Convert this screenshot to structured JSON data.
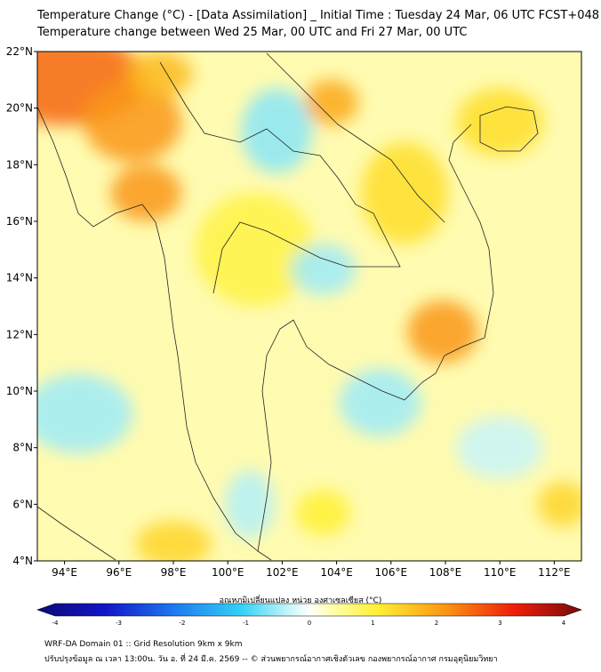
{
  "title_line1": "Temperature Change (°C) - [Data Assimilation] _ Initial Time : Tuesday 24 Mar, 06 UTC FCST+048",
  "title_line2": "Temperature change between Wed 25 Mar, 00 UTC and Fri 27 Mar, 00 UTC",
  "map": {
    "lon_range": [
      93,
      113
    ],
    "lat_range": [
      4,
      22
    ],
    "lon_ticks": [
      "94°E",
      "96°E",
      "98°E",
      "100°E",
      "102°E",
      "104°E",
      "106°E",
      "108°E",
      "110°E",
      "112°E"
    ],
    "lat_ticks": [
      "4°N",
      "6°N",
      "8°N",
      "10°N",
      "12°N",
      "14°N",
      "16°N",
      "18°N",
      "20°N",
      "22°N"
    ],
    "blobs": [
      {
        "lon": 94.0,
        "lat": 21.0,
        "rx": 3.0,
        "ry": 1.6,
        "value": 2.4
      },
      {
        "lon": 96.5,
        "lat": 19.5,
        "rx": 1.8,
        "ry": 1.4,
        "value": 2.0
      },
      {
        "lon": 97.0,
        "lat": 17.0,
        "rx": 1.3,
        "ry": 1.0,
        "value": 2.0
      },
      {
        "lon": 97.5,
        "lat": 21.2,
        "rx": 1.2,
        "ry": 0.8,
        "value": 1.6
      },
      {
        "lon": 103.8,
        "lat": 20.2,
        "rx": 1.0,
        "ry": 0.8,
        "value": 1.8
      },
      {
        "lon": 107.9,
        "lat": 12.1,
        "rx": 1.3,
        "ry": 1.1,
        "value": 2.0
      },
      {
        "lon": 106.5,
        "lat": 17.0,
        "rx": 1.6,
        "ry": 1.8,
        "value": 1.2
      },
      {
        "lon": 110.0,
        "lat": 19.5,
        "rx": 1.6,
        "ry": 1.2,
        "value": 1.2
      },
      {
        "lon": 101.0,
        "lat": 15.0,
        "rx": 2.2,
        "ry": 2.0,
        "value": 0.9
      },
      {
        "lon": 101.8,
        "lat": 19.2,
        "rx": 1.3,
        "ry": 1.5,
        "value": -0.6
      },
      {
        "lon": 103.5,
        "lat": 14.3,
        "rx": 1.2,
        "ry": 0.9,
        "value": -0.5
      },
      {
        "lon": 105.6,
        "lat": 9.6,
        "rx": 1.5,
        "ry": 1.2,
        "value": -0.5
      },
      {
        "lon": 94.5,
        "lat": 9.2,
        "rx": 2.0,
        "ry": 1.4,
        "value": -0.5
      },
      {
        "lon": 100.8,
        "lat": 6.0,
        "rx": 0.9,
        "ry": 1.2,
        "value": -0.4
      },
      {
        "lon": 110.0,
        "lat": 8.0,
        "rx": 1.6,
        "ry": 1.1,
        "value": -0.3
      },
      {
        "lon": 98.0,
        "lat": 4.6,
        "rx": 1.4,
        "ry": 0.8,
        "value": 1.3
      },
      {
        "lon": 103.5,
        "lat": 5.7,
        "rx": 1.0,
        "ry": 0.8,
        "value": 1.0
      },
      {
        "lon": 112.3,
        "lat": 6.0,
        "rx": 0.9,
        "ry": 0.8,
        "value": 1.3
      }
    ]
  },
  "colorbar": {
    "label": "อุณหภูมิเปลี่ยนแปลง หน่วย องศาเซลเซียส (°C)",
    "min": -4,
    "max": 4,
    "ticks": [
      "-4",
      "-3",
      "-2",
      "-1",
      "0",
      "1",
      "2",
      "3",
      "4"
    ],
    "colors": [
      {
        "v": -4,
        "c": "#0a0a78"
      },
      {
        "v": -3,
        "c": "#1414c8"
      },
      {
        "v": -2,
        "c": "#1e78f0"
      },
      {
        "v": -1,
        "c": "#32d2f5"
      },
      {
        "v": -0.3,
        "c": "#c8f5fa"
      },
      {
        "v": 0,
        "c": "#ffffff"
      },
      {
        "v": 0.3,
        "c": "#ffffb4"
      },
      {
        "v": 1,
        "c": "#fff032"
      },
      {
        "v": 2,
        "c": "#fa9614"
      },
      {
        "v": 3,
        "c": "#f01e0a"
      },
      {
        "v": 4,
        "c": "#780a0a"
      }
    ]
  },
  "footer_line1": "WRF-DA Domain 01 :: Grid Resolution 9km x 9km",
  "footer_line2": "ปรับปรุงข้อมูล ณ เวลา 13:00น. วัน อ. ที่ 24 มี.ค. 2569 -- © ส่วนพยากรณ์อากาศเชิงตัวเลข กองพยากรณ์อากาศ กรมอุตุนิยมวิทยา"
}
